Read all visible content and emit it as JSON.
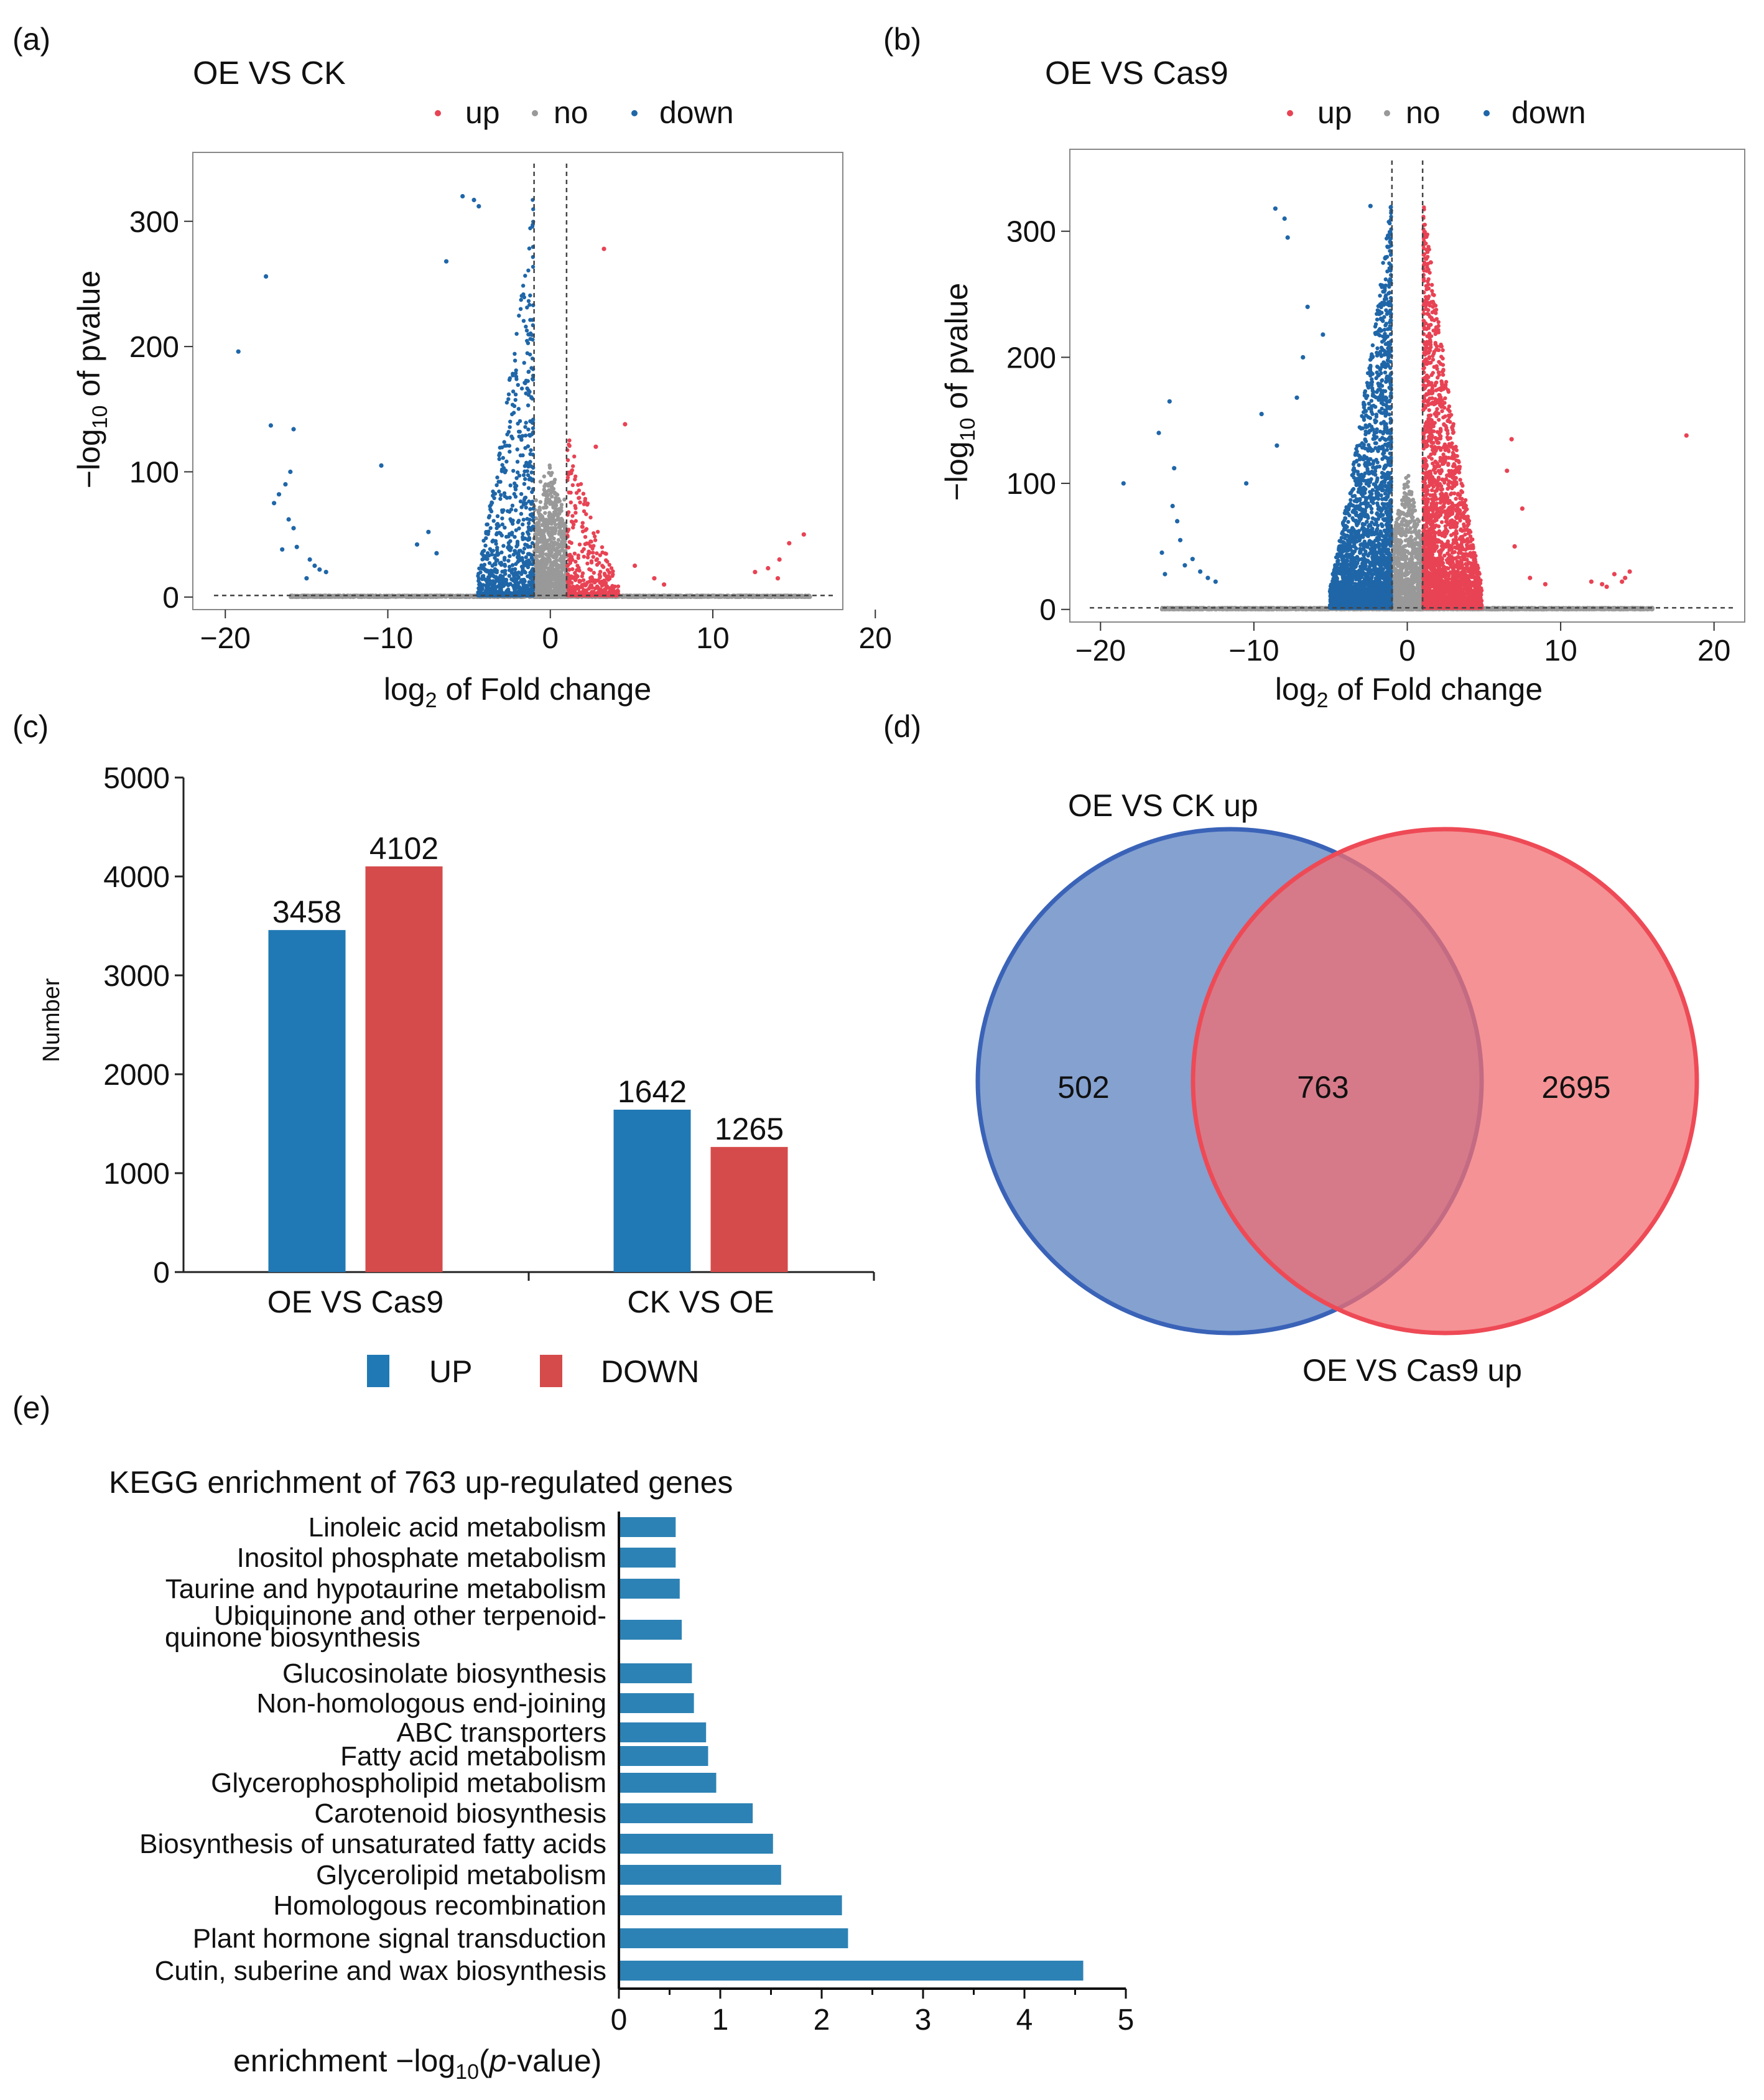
{
  "panel_labels": [
    "(a)",
    "(b)",
    "(c)",
    "(d)",
    "(e)"
  ],
  "colors": {
    "up": "#e84354",
    "no": "#999999",
    "down": "#1f66a8",
    "bar_up": "#2079b4",
    "bar_down": "#d54b4b",
    "kegg": "#2d82b5",
    "highlight": "#e8202a",
    "venn_left": "#5b82c0",
    "venn_right": "#f26e72"
  },
  "chart_data": [
    {
      "id": "a",
      "type": "scatter",
      "title": "OE VS CK",
      "legend": {
        "items": [
          "up",
          "no",
          "down"
        ],
        "placement": "top"
      },
      "xlabel": {
        "pre": "log",
        "sub": "2",
        "post": " of Fold change"
      },
      "ylabel": {
        "pre": "−log",
        "sub": "10",
        "post": " of pvalue"
      },
      "xlim": [
        -22,
        18
      ],
      "ylim": [
        -10,
        355
      ],
      "xticks": [
        -20,
        -10,
        0,
        10,
        20
      ],
      "xtick_labels": [
        "−20",
        "−10",
        "0",
        "10",
        "20"
      ],
      "yticks": [
        0,
        100,
        200,
        300
      ],
      "ytick_labels": [
        "0",
        "100",
        "200",
        "300"
      ],
      "thresholds": {
        "fc": [
          -1,
          1
        ],
        "p": 1.3
      },
      "outliers_down": [
        [
          -17.5,
          256
        ],
        [
          -19.2,
          196
        ],
        [
          -17.2,
          137
        ],
        [
          -15.8,
          134
        ],
        [
          -16,
          100
        ],
        [
          -16.3,
          90
        ],
        [
          -16.7,
          82
        ],
        [
          -17,
          75
        ],
        [
          -16.1,
          62
        ],
        [
          -15.8,
          55
        ],
        [
          -15.6,
          40
        ],
        [
          -16.5,
          38
        ],
        [
          -14.8,
          30
        ],
        [
          -14.5,
          25
        ],
        [
          -14.2,
          22
        ],
        [
          -15,
          15
        ],
        [
          -13.8,
          20
        ],
        [
          -10.4,
          105
        ],
        [
          -8.2,
          42
        ],
        [
          -7.5,
          52
        ],
        [
          -7,
          35
        ],
        [
          -6.4,
          268
        ],
        [
          -5.4,
          320
        ],
        [
          -4.7,
          317
        ],
        [
          -4.4,
          312
        ]
      ],
      "outliers_up": [
        [
          3.3,
          278
        ],
        [
          4.6,
          138
        ],
        [
          2.8,
          120
        ],
        [
          15.6,
          50
        ],
        [
          14.7,
          43
        ],
        [
          14.1,
          30
        ],
        [
          13.4,
          23
        ],
        [
          12.6,
          20
        ],
        [
          14,
          15
        ],
        [
          5.2,
          25
        ],
        [
          6.4,
          15
        ],
        [
          7,
          10
        ]
      ],
      "n_down": 900,
      "n_up": 420,
      "n_no": 2600,
      "down_max": 320,
      "up_max": 130,
      "down_spread": 3.4,
      "up_spread": 3.2
    },
    {
      "id": "b",
      "type": "scatter",
      "title": "OE VS Cas9",
      "legend": {
        "items": [
          "up",
          "no",
          "down"
        ],
        "placement": "top"
      },
      "xlabel": {
        "pre": "log",
        "sub": "2",
        "post": " of Fold change"
      },
      "ylabel": {
        "pre": "−log",
        "sub": "10",
        "post": " of pvalue"
      },
      "xlim": [
        -22,
        22
      ],
      "ylim": [
        -10,
        365
      ],
      "xticks": [
        -20,
        -10,
        0,
        10,
        20
      ],
      "xtick_labels": [
        "−20",
        "−10",
        "0",
        "10",
        "20"
      ],
      "yticks": [
        0,
        100,
        200,
        300
      ],
      "ytick_labels": [
        "0",
        "100",
        "200",
        "300"
      ],
      "thresholds": {
        "fc": [
          -1,
          1
        ],
        "p": 1.3
      },
      "outliers_down": [
        [
          -18.5,
          100
        ],
        [
          -16.2,
          140
        ],
        [
          -15.5,
          165
        ],
        [
          -15.2,
          112
        ],
        [
          -15.3,
          82
        ],
        [
          -15,
          70
        ],
        [
          -14.8,
          55
        ],
        [
          -16,
          45
        ],
        [
          -14,
          40
        ],
        [
          -13.5,
          30
        ],
        [
          -15.8,
          28
        ],
        [
          -14.5,
          35
        ],
        [
          -13,
          25
        ],
        [
          -12.5,
          22
        ],
        [
          -8.6,
          318
        ],
        [
          -8,
          310
        ],
        [
          -7.8,
          295
        ],
        [
          -6.8,
          200
        ],
        [
          -7.2,
          168
        ],
        [
          -9.5,
          155
        ],
        [
          -8.5,
          130
        ],
        [
          -10.5,
          100
        ],
        [
          -6.5,
          240
        ],
        [
          -5.5,
          218
        ],
        [
          -2.4,
          320
        ]
      ],
      "outliers_up": [
        [
          18.2,
          138
        ],
        [
          14.5,
          30
        ],
        [
          14.2,
          25
        ],
        [
          13.5,
          28
        ],
        [
          12.7,
          20
        ],
        [
          12,
          22
        ],
        [
          13,
          18
        ],
        [
          14,
          22
        ],
        [
          7,
          50
        ],
        [
          6.5,
          110
        ],
        [
          7.5,
          80
        ],
        [
          8,
          25
        ],
        [
          9,
          20
        ],
        [
          6.8,
          135
        ]
      ],
      "n_down": 3300,
      "n_up": 3300,
      "n_no": 2800,
      "down_max": 322,
      "up_max": 322,
      "down_spread": 4.0,
      "up_spread": 3.8
    },
    {
      "id": "c",
      "type": "bar",
      "ylabel": "Number",
      "ylim": [
        0,
        5000
      ],
      "yticks": [
        0,
        1000,
        2000,
        3000,
        4000,
        5000
      ],
      "categories": [
        "OE VS Cas9",
        "CK VS OE"
      ],
      "series": [
        {
          "name": "UP",
          "values": [
            3458,
            1642
          ]
        },
        {
          "name": "DOWN",
          "values": [
            4102,
            1265
          ]
        }
      ],
      "legend_placement": "bottom"
    },
    {
      "id": "d",
      "type": "venn",
      "sets": [
        {
          "name": "OE VS CK up",
          "only": 502
        },
        {
          "name": "OE VS Cas9 up",
          "only": 2695
        }
      ],
      "intersection": 763
    },
    {
      "id": "e",
      "type": "bar",
      "orientation": "horizontal",
      "title": "KEGG enrichment of 763 up-regulated genes",
      "xlabel": {
        "pre": "enrichment −log",
        "sub": "10",
        "post": "(",
        "italic": "p",
        "post2": "-value)"
      },
      "xlim": [
        0,
        5
      ],
      "xticks": [
        0,
        1,
        2,
        3,
        4,
        5
      ],
      "highlight_index": 1,
      "categories": [
        [
          "Linoleic acid metabolism"
        ],
        [
          "Inositol phosphate metabolism"
        ],
        [
          "Taurine and hypotaurine metabolism"
        ],
        [
          "Ubiquinone and other terpenoid-",
          "quinone biosynthesis"
        ],
        [
          "Glucosinolate biosynthesis"
        ],
        [
          "Non-homologous end-joining"
        ],
        [
          "ABC transporters"
        ],
        [
          "Fatty acid metabolism"
        ],
        [
          "Glycerophospholipid metabolism"
        ],
        [
          "Carotenoid biosynthesis"
        ],
        [
          "Biosynthesis of unsaturated fatty acids"
        ],
        [
          "Glycerolipid metabolism"
        ],
        [
          "Homologous recombination"
        ],
        [
          "Plant hormone signal transduction"
        ],
        [
          "Cutin, suberine and wax biosynthesis"
        ]
      ],
      "values": [
        0.56,
        0.56,
        0.6,
        0.62,
        0.72,
        0.74,
        0.86,
        0.88,
        0.96,
        1.32,
        1.52,
        1.6,
        2.2,
        2.26,
        4.58
      ]
    }
  ]
}
